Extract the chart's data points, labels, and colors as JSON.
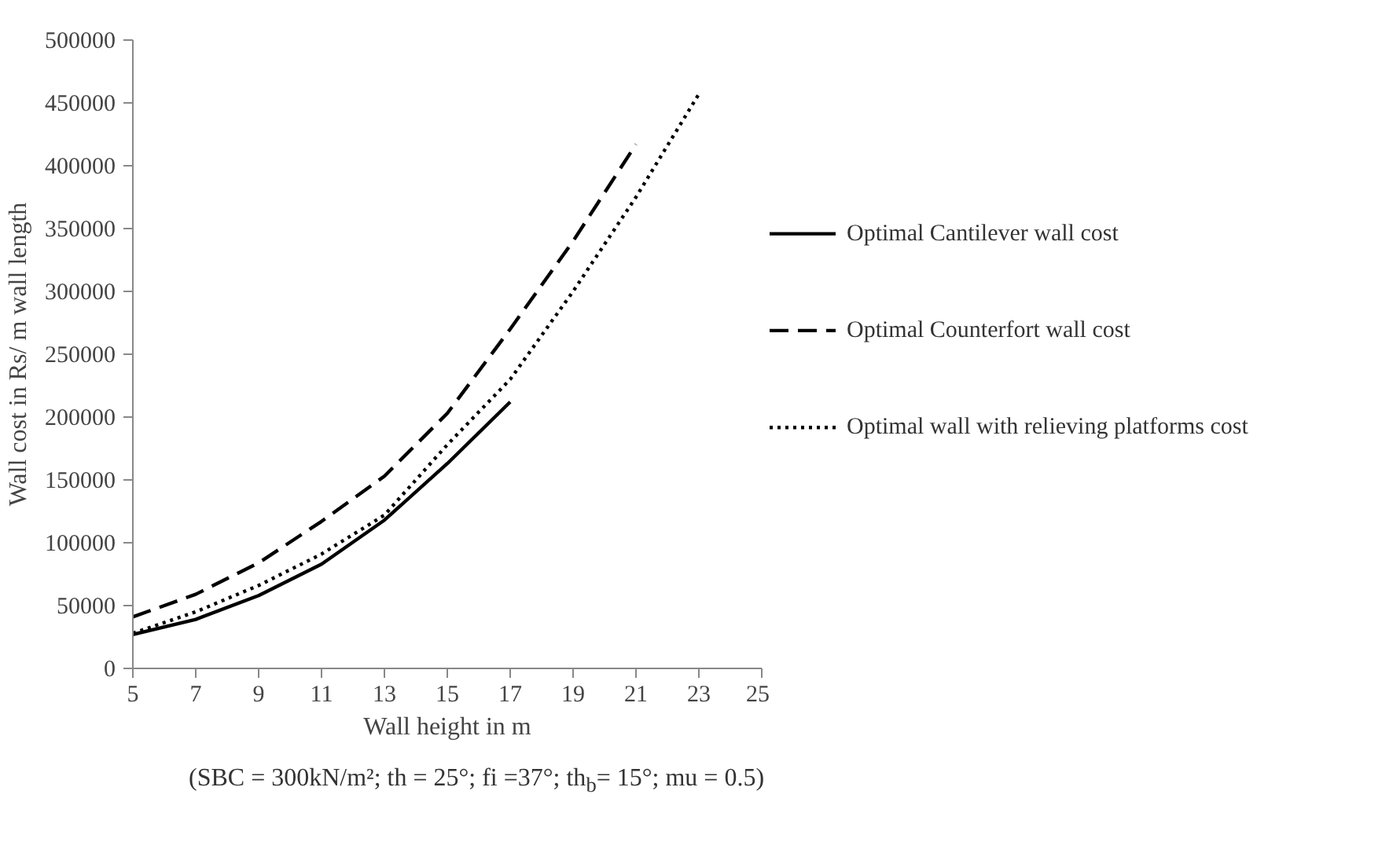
{
  "chart_data": {
    "type": "line",
    "xlabel": "Wall height in m",
    "ylabel": "Wall cost in Rs/ m wall length",
    "annotations": [
      "(SBC = 300kN/m²; th = 25°; fi =37°; th$_{b}$= 15°; mu = 0.5)"
    ],
    "series": [
      {
        "name": "Optimal Cantilever wall cost",
        "color": "#000000",
        "line_style": "solid",
        "x": [
          5,
          7,
          9,
          11,
          13,
          15,
          17
        ],
        "values": [
          27000,
          39000,
          58000,
          83000,
          118000,
          163000,
          212000
        ]
      },
      {
        "name": "Optimal Counterfort wall cost",
        "color": "#000000",
        "line_style": "dashed",
        "x": [
          5,
          7,
          9,
          11,
          13,
          15,
          17,
          19,
          21
        ],
        "values": [
          41000,
          59000,
          84000,
          117000,
          153000,
          203000,
          270000,
          340000,
          417000
        ]
      },
      {
        "name": "Optimal wall with relieving platforms cost",
        "color": "#000000",
        "line_style": "dotted",
        "x": [
          5,
          7,
          9,
          11,
          13,
          15,
          17,
          19,
          21,
          23
        ],
        "values": [
          28000,
          45000,
          66000,
          91000,
          122000,
          178000,
          230000,
          300000,
          375000,
          457000
        ]
      }
    ],
    "xlim": [
      5,
      25
    ],
    "xticks": [
      5,
      7,
      9,
      11,
      13,
      15,
      17,
      19,
      21,
      23,
      25
    ],
    "ylim": [
      0,
      500000
    ],
    "yticks": [
      0,
      50000,
      100000,
      150000,
      200000,
      250000,
      300000,
      350000,
      400000,
      450000,
      500000
    ],
    "grid": false,
    "legend": "right",
    "marker": "none"
  }
}
